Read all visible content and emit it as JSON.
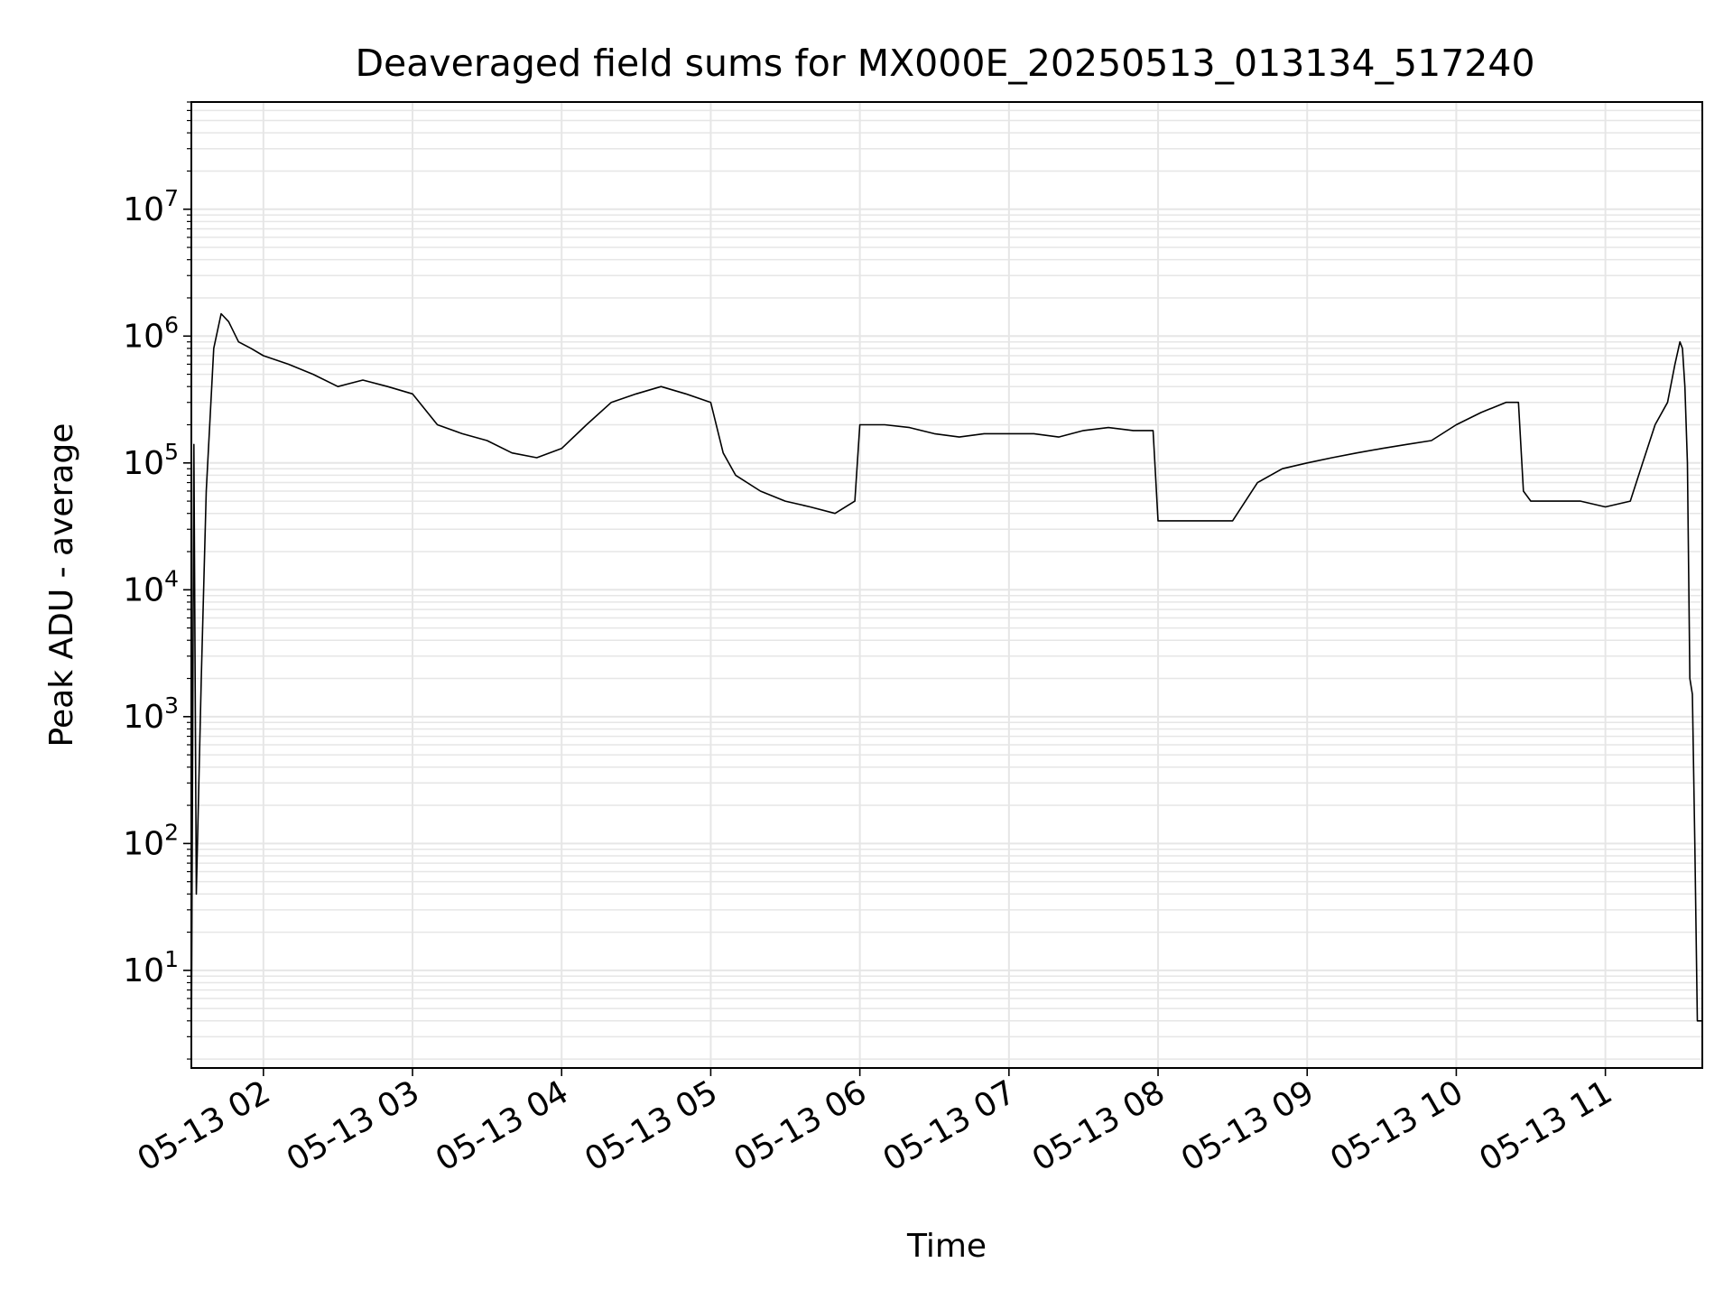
{
  "chart_data": {
    "type": "line",
    "title": "Deaveraged field sums for MX000E_20250513_013134_517240",
    "xlabel": "Time",
    "ylabel": "Peak ADU - average",
    "yscale": "log",
    "grid": true,
    "legend": "none",
    "xlim": [
      "2025-05-13 01:31",
      "2025-05-13 11:39"
    ],
    "ylim": [
      1.7,
      70000000
    ],
    "x_ticks": [
      {
        "value": "2025-05-13 02:00",
        "label": "05-13 02"
      },
      {
        "value": "2025-05-13 03:00",
        "label": "05-13 03"
      },
      {
        "value": "2025-05-13 04:00",
        "label": "05-13 04"
      },
      {
        "value": "2025-05-13 05:00",
        "label": "05-13 05"
      },
      {
        "value": "2025-05-13 06:00",
        "label": "05-13 06"
      },
      {
        "value": "2025-05-13 07:00",
        "label": "05-13 07"
      },
      {
        "value": "2025-05-13 08:00",
        "label": "05-13 08"
      },
      {
        "value": "2025-05-13 09:00",
        "label": "05-13 09"
      },
      {
        "value": "2025-05-13 10:00",
        "label": "05-13 10"
      },
      {
        "value": "2025-05-13 11:00",
        "label": "05-13 11"
      }
    ],
    "y_ticks": [
      {
        "value": 10,
        "base": "10",
        "exp": "1"
      },
      {
        "value": 100,
        "base": "10",
        "exp": "2"
      },
      {
        "value": 1000,
        "base": "10",
        "exp": "3"
      },
      {
        "value": 10000,
        "base": "10",
        "exp": "4"
      },
      {
        "value": 100000,
        "base": "10",
        "exp": "5"
      },
      {
        "value": 1000000,
        "base": "10",
        "exp": "6"
      },
      {
        "value": 10000000,
        "base": "10",
        "exp": "7"
      }
    ],
    "line_color": "#000000",
    "grid_color": "#e6e6e6",
    "series": [
      {
        "x": [
          "01:31",
          "01:32",
          "01:33",
          "01:34",
          "01:35",
          "01:37",
          "01:40",
          "01:43",
          "01:46",
          "01:50",
          "01:55",
          "02:00",
          "02:10",
          "02:20",
          "02:30",
          "02:40",
          "02:50",
          "03:00",
          "03:10",
          "03:20",
          "03:30",
          "03:40",
          "03:50",
          "04:00",
          "04:10",
          "04:20",
          "04:30",
          "04:40",
          "04:50",
          "05:00",
          "05:05",
          "05:10",
          "05:20",
          "05:30",
          "05:40",
          "05:50",
          "05:58",
          "06:00",
          "06:10",
          "06:20",
          "06:30",
          "06:40",
          "06:50",
          "07:00",
          "07:10",
          "07:20",
          "07:30",
          "07:40",
          "07:50",
          "07:58",
          "08:00",
          "08:10",
          "08:20",
          "08:30",
          "08:40",
          "08:50",
          "09:00",
          "09:10",
          "09:20",
          "09:30",
          "09:40",
          "09:50",
          "10:00",
          "10:10",
          "10:20",
          "10:25",
          "10:27",
          "10:30",
          "10:40",
          "10:50",
          "11:00",
          "11:10",
          "11:15",
          "11:20",
          "11:25",
          "11:28",
          "11:30",
          "11:31",
          "11:32",
          "11:33",
          "11:34",
          "11:35",
          "11:36",
          "11:37",
          "11:39"
        ],
        "y": [
          2,
          140000,
          40,
          300,
          2000,
          60000,
          800000,
          1500000,
          1300000,
          900000,
          800000,
          700000,
          600000,
          500000,
          400000,
          450000,
          400000,
          350000,
          200000,
          170000,
          150000,
          120000,
          110000,
          130000,
          200000,
          300000,
          350000,
          400000,
          350000,
          300000,
          120000,
          80000,
          60000,
          50000,
          45000,
          40000,
          50000,
          200000,
          200000,
          190000,
          170000,
          160000,
          170000,
          170000,
          170000,
          160000,
          180000,
          190000,
          180000,
          180000,
          35000,
          35000,
          35000,
          35000,
          70000,
          90000,
          100000,
          110000,
          120000,
          130000,
          140000,
          150000,
          200000,
          250000,
          300000,
          300000,
          60000,
          50000,
          50000,
          50000,
          45000,
          50000,
          100000,
          200000,
          300000,
          600000,
          900000,
          800000,
          400000,
          100000,
          2000,
          1500,
          100,
          4,
          4
        ]
      }
    ]
  }
}
